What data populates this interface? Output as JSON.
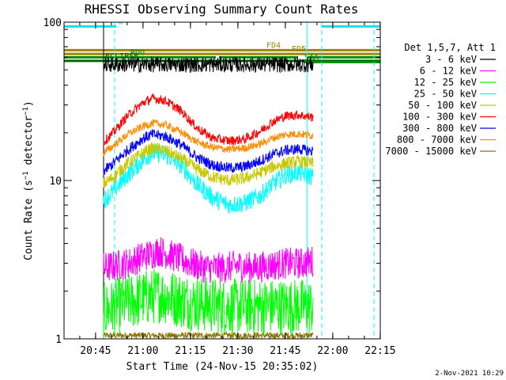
{
  "chart_data": {
    "type": "line",
    "title": "RHESSI Observing Summary Count Rates",
    "xlabel": "Start Time (24-Nov-15 20:35:02)",
    "ylabel_main": "Count Rate (s",
    "ylabel_sup1": "−1",
    "ylabel_mid": " detector",
    "ylabel_sup2": "−1",
    "ylabel_end": ")",
    "x_unit": "minutes since 20:35:02",
    "x_range": [
      0,
      100
    ],
    "y_scale": "log",
    "y_range": [
      1,
      100
    ],
    "x_ticks": [
      {
        "label": "20:45",
        "value": 9.97
      },
      {
        "label": "21:00",
        "value": 24.97
      },
      {
        "label": "21:15",
        "value": 39.97
      },
      {
        "label": "21:30",
        "value": 54.97
      },
      {
        "label": "21:45",
        "value": 69.97
      },
      {
        "label": "22:00",
        "value": 84.97
      },
      {
        "label": "22:15",
        "value": 99.97
      }
    ],
    "y_ticks": [
      {
        "label": "1",
        "value": 1
      },
      {
        "label": "10",
        "value": 10
      },
      {
        "label": "100",
        "value": 100
      }
    ],
    "legend_header": "Det 1,5,7, Att 1",
    "series": [
      {
        "name": "3 - 6 keV",
        "color": "#000000",
        "x": [
          12.5,
          20,
          30,
          40,
          50,
          60,
          70,
          75,
          78.8
        ],
        "values": [
          54,
          54,
          54,
          54,
          54,
          54,
          54,
          54,
          54
        ],
        "noise": 0.05
      },
      {
        "name": "6 - 12 keV",
        "color": "#ff00ff",
        "x": [
          12.5,
          20,
          25,
          30,
          35,
          40,
          45,
          50,
          55,
          60,
          65,
          70,
          75,
          78.8
        ],
        "values": [
          2.8,
          3.0,
          3.3,
          3.6,
          3.3,
          3.0,
          2.8,
          2.8,
          2.9,
          2.8,
          2.9,
          3.0,
          3.0,
          3.1
        ],
        "noise": 0.1
      },
      {
        "name": "12 - 25 keV",
        "color": "#00ff00",
        "x": [
          12.5,
          20,
          30,
          40,
          50,
          60,
          70,
          78.8
        ],
        "values": [
          1.5,
          1.7,
          1.9,
          1.7,
          1.6,
          1.6,
          1.6,
          1.6
        ],
        "noise": 0.18
      },
      {
        "name": "25 - 50 keV",
        "color": "#00ffff",
        "x": [
          12.5,
          15,
          20,
          25,
          28,
          32,
          37,
          42,
          47,
          52,
          57,
          62,
          66,
          70,
          74,
          78.8
        ],
        "values": [
          7.5,
          8.3,
          10.8,
          13.5,
          15.0,
          14.5,
          12.5,
          9.5,
          7.8,
          7.0,
          7.2,
          8.0,
          9.5,
          10.8,
          11.2,
          10.6
        ],
        "noise": 0.06
      },
      {
        "name": "50 - 100 keV",
        "color": "#c8c800",
        "x": [
          12.5,
          15,
          20,
          25,
          28,
          32,
          37,
          42,
          47,
          52,
          57,
          62,
          66,
          70,
          74,
          78.8
        ],
        "values": [
          9.5,
          10.3,
          12.8,
          15.0,
          16.0,
          15.5,
          13.8,
          11.8,
          10.5,
          10.0,
          10.3,
          11.2,
          12.2,
          12.8,
          13.2,
          12.8
        ],
        "noise": 0.04
      },
      {
        "name": "100 - 300 keV",
        "color": "#ff0000",
        "x": [
          12.5,
          15,
          20,
          25,
          28,
          32,
          37,
          42,
          47,
          52,
          57,
          62,
          66,
          70,
          74,
          78.8
        ],
        "values": [
          17.5,
          19.5,
          25.5,
          31.0,
          33.0,
          32.0,
          27.5,
          21.5,
          18.5,
          17.8,
          18.2,
          20.5,
          23.5,
          25.5,
          26.0,
          25.0
        ],
        "noise": 0.03
      },
      {
        "name": "300 - 800 keV",
        "color": "#0000ff",
        "x": [
          12.5,
          15,
          20,
          25,
          28,
          32,
          37,
          42,
          47,
          52,
          57,
          62,
          66,
          70,
          74,
          78.8
        ],
        "values": [
          11.5,
          12.5,
          15.5,
          18.5,
          19.5,
          19.0,
          16.8,
          14.0,
          12.5,
          12.0,
          12.2,
          13.3,
          14.6,
          15.5,
          15.8,
          15.3
        ],
        "noise": 0.035
      },
      {
        "name": "800 - 7000 keV",
        "color": "#ff8c00",
        "x": [
          12.5,
          15,
          20,
          25,
          28,
          32,
          37,
          42,
          47,
          52,
          57,
          62,
          66,
          70,
          74,
          78.8
        ],
        "values": [
          15.0,
          16.2,
          19.5,
          22.0,
          23.0,
          22.5,
          20.2,
          17.5,
          16.2,
          15.7,
          16.0,
          17.0,
          18.5,
          19.5,
          19.7,
          19.2
        ],
        "noise": 0.025
      },
      {
        "name": "7000 - 15000 keV",
        "color": "#8b7500",
        "x": [
          12.5,
          20,
          30,
          40,
          50,
          60,
          70,
          78.8
        ],
        "values": [
          1.05,
          1.05,
          1.05,
          1.05,
          1.05,
          1.05,
          1.05,
          1.05
        ],
        "noise": 0.02
      }
    ],
    "flags": [
      {
        "label": "N",
        "color": "#00e5ee",
        "y": 94,
        "segments": [
          [
            0,
            16.5
          ],
          [
            81.5,
            100
          ]
        ],
        "label_x": 17,
        "vlines": [
          16,
          81.5
        ]
      },
      {
        "label": "FD4",
        "color": "#9b8400",
        "y": 66.5,
        "segments": [
          [
            0,
            100
          ]
        ],
        "label_x": 64
      },
      {
        "label": "FD5",
        "color": "#9b8400",
        "y": 63,
        "segments": [
          [
            0,
            100
          ]
        ],
        "label_x": 72
      },
      {
        "label": "RDO",
        "color": "#008b00",
        "y": 60,
        "segments": [
          [
            0,
            48
          ],
          [
            49,
            74
          ],
          [
            77,
            100
          ]
        ],
        "label_x": 21
      },
      {
        "label": "ECLIPSE",
        "color": "#006400",
        "y": 57,
        "segments": [
          [
            0,
            100
          ]
        ],
        "label_x": 13
      },
      {
        "label": "SAA",
        "color": "#008b00",
        "y": 56,
        "segments": [
          [
            76,
            100
          ]
        ],
        "label_x": 76
      }
    ],
    "vlines": [
      {
        "x": 12.5,
        "color": "#000000"
      },
      {
        "x": 16.0,
        "color": "#00ffff",
        "style": "dashed"
      },
      {
        "x": 76.8,
        "color": "#00ffff"
      },
      {
        "x": 81.5,
        "color": "#00ffff",
        "style": "dashed"
      },
      {
        "x": 0.0,
        "color": "#00ffff"
      },
      {
        "x": 98.0,
        "color": "#00ffff",
        "style": "dashed"
      }
    ]
  },
  "footer": {
    "date": "2-Nov-2021 10:29"
  }
}
